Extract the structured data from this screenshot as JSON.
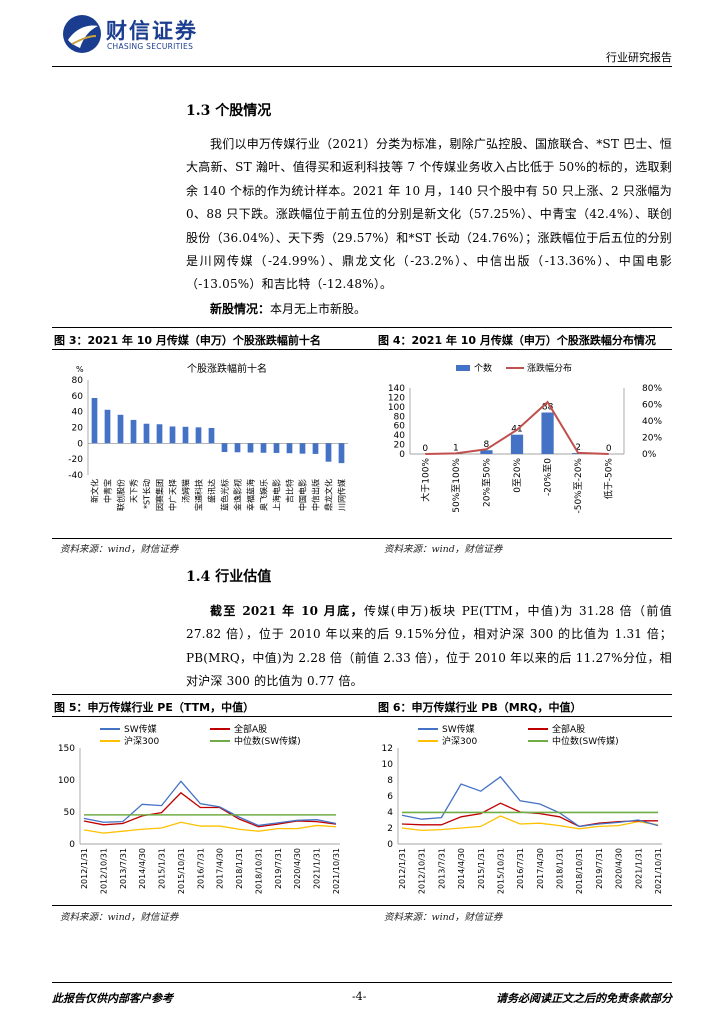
{
  "header": {
    "brand_cn": "财信证券",
    "brand_en": "CHASING SECURITIES",
    "report_type": "行业研究报告"
  },
  "section_1_3": {
    "title": "1.3 个股情况",
    "paragraph1": "我们以申万传媒行业（2021）分类为标准，剔除广弘控股、国旅联合、*ST 巴士、恒大高新、ST 瀚叶、值得买和返利科技等 7 个传媒业务收入占比低于 50%的标的，选取剩余 140 个标的作为统计样本。2021 年 10 月，140 只个股中有 50 只上涨、2 只涨幅为 0、88 只下跌。涨跌幅位于前五位的分别是新文化（57.25%）、中青宝（42.4%）、联创股份（36.04%）、天下秀（29.57%）和*ST 长动（24.76%）；涨跌幅位于后五位的分别是川网传媒（-24.99%）、鼎龙文化（-23.2%）、中信出版（-13.36%）、中国电影（-13.05%）和吉比特（-12.48%）。",
    "paragraph2_label": "新股情况：",
    "paragraph2_text": "本月无上市新股。"
  },
  "section_1_4": {
    "title": "1.4 行业估值",
    "para_label": "截至 2021 年 10 月底，",
    "para_text": "传媒(申万)板块 PE(TTM，中值)为 31.28 倍（前值 27.82 倍），位于 2010 年以来的后 9.15%分位，相对沪深 300 的比值为 1.31 倍；PB(MRQ，中值)为 2.28 倍（前值 2.33 倍），位于 2010 年以来的后 11.27%分位，相对沪深 300 的比值为 0.77 倍。"
  },
  "figures": {
    "fig3_title": "图 3：2021 年 10 月传媒（申万）个股涨跌幅前十名",
    "fig4_title": "图 4：2021 年 10 月传媒（申万）个股涨跌幅分布情况",
    "fig5_title": "图 5：申万传媒行业 PE（TTM，中值）",
    "fig6_title": "图 6：申万传媒行业 PB（MRQ，中值）",
    "source": "资料来源：wind，财信证券"
  },
  "footer": {
    "left": "此报告仅供内部客户参考",
    "page": "-4-",
    "right": "请务必阅读正文之后的免责条款部分"
  },
  "colors": {
    "bar": "#4472c4",
    "red_line": "#c0504d",
    "sw": "#4472c4",
    "all_a": "#c00000",
    "hs300": "#ffc000",
    "median": "#70ad47",
    "brand": "#1b3d8f"
  },
  "chart_data": [
    {
      "type": "bar",
      "title": "个股涨跌幅前十名",
      "ylabel": "%",
      "ylim": [
        -40,
        80
      ],
      "yticks": [
        80,
        60,
        40,
        20,
        0,
        -20,
        -40
      ],
      "categories": [
        "新文化",
        "中青宝",
        "联创股份",
        "天下秀",
        "*ST长动",
        "因赛集团",
        "中广天择",
        "汤姆猫",
        "宝通科技",
        "盛讯达",
        "蓝色光标",
        "金逸影视",
        "幸福蓝海",
        "奥飞娱乐",
        "上海电影",
        "吉比特",
        "中国电影",
        "中信出版",
        "鼎龙文化",
        "川网传媒"
      ],
      "values": [
        57.25,
        42.4,
        36.04,
        29.57,
        24.76,
        24.1,
        21.3,
        20.9,
        20.2,
        19.4,
        -11.0,
        -11.3,
        -11.6,
        -11.9,
        -12.1,
        -12.48,
        -13.05,
        -13.36,
        -23.2,
        -24.99
      ]
    },
    {
      "type": "bar",
      "categories": [
        "大于100%",
        "50%至100%",
        "20%至50%",
        "0至20%",
        "-20%至0",
        "-50%至-20%",
        "低于-50%"
      ],
      "series": [
        {
          "name": "个数",
          "type": "bar",
          "values": [
            0,
            1,
            8,
            41,
            88,
            2,
            0
          ]
        },
        {
          "name": "涨跌幅分布",
          "type": "line",
          "axis": "right",
          "values": [
            0,
            0.7,
            5.7,
            29.3,
            62.9,
            1.4,
            0
          ]
        }
      ],
      "ylim_left": [
        0,
        140
      ],
      "yticks_left": [
        140,
        120,
        100,
        80,
        60,
        40,
        20,
        0
      ],
      "ylim_right": [
        0,
        80
      ],
      "yticks_right": [
        "80%",
        "60%",
        "40%",
        "20%",
        "0%"
      ],
      "legend": "top"
    },
    {
      "type": "line",
      "x": [
        "2012/1/31",
        "2012/10/31",
        "2013/7/31",
        "2014/4/30",
        "2015/1/31",
        "2015/10/31",
        "2016/7/31",
        "2017/4/30",
        "2018/1/31",
        "2018/10/31",
        "2019/7/31",
        "2020/4/30",
        "2021/1/31",
        "2021/10/31"
      ],
      "ylim": [
        0,
        150
      ],
      "yticks": [
        150,
        100,
        50,
        0
      ],
      "series": [
        {
          "name": "SW传媒",
          "values": [
            40,
            34,
            35,
            62,
            60,
            98,
            63,
            58,
            42,
            29,
            33,
            37,
            38,
            32
          ]
        },
        {
          "name": "全部A股",
          "values": [
            36,
            30,
            32,
            44,
            49,
            80,
            57,
            57,
            39,
            27,
            31,
            36,
            35,
            31
          ]
        },
        {
          "name": "沪深300",
          "values": [
            22,
            17,
            20,
            23,
            25,
            34,
            28,
            28,
            23,
            20,
            24,
            24,
            29,
            27
          ]
        },
        {
          "name": "中位数(SW传媒)",
          "values": [
            45.5,
            45.5,
            45.5,
            45.5,
            45.5,
            45.5,
            45.5,
            45.5,
            45.5,
            45.5,
            45.5,
            45.5,
            45.5,
            45.5
          ]
        }
      ],
      "legend": "top"
    },
    {
      "type": "line",
      "x": [
        "2012/1/31",
        "2012/10/31",
        "2013/7/31",
        "2014/4/30",
        "2015/1/31",
        "2015/10/31",
        "2016/7/31",
        "2017/4/30",
        "2018/1/31",
        "2018/10/31",
        "2019/7/31",
        "2020/4/30",
        "2021/1/31",
        "2021/10/31"
      ],
      "ylim": [
        0,
        12
      ],
      "yticks": [
        12,
        10,
        8,
        6,
        4,
        2,
        0
      ],
      "series": [
        {
          "name": "SW传媒",
          "values": [
            3.6,
            3.1,
            3.3,
            7.5,
            6.6,
            8.4,
            5.4,
            5.0,
            3.9,
            2.2,
            2.5,
            2.7,
            3.0,
            2.3
          ]
        },
        {
          "name": "全部A股",
          "values": [
            2.5,
            2.4,
            2.4,
            3.4,
            3.8,
            5.1,
            4.0,
            3.8,
            3.4,
            2.2,
            2.6,
            2.8,
            2.9,
            2.9
          ]
        },
        {
          "name": "沪深300",
          "values": [
            2.0,
            1.7,
            1.8,
            2.0,
            2.2,
            3.5,
            2.5,
            2.6,
            2.3,
            1.9,
            2.2,
            2.3,
            2.8,
            2.4
          ]
        },
        {
          "name": "中位数(SW传媒)",
          "values": [
            3.95,
            3.95,
            3.95,
            3.95,
            3.95,
            3.95,
            3.95,
            3.95,
            3.95,
            3.95,
            3.95,
            3.95,
            3.95,
            3.95
          ]
        }
      ],
      "legend": "top"
    }
  ]
}
